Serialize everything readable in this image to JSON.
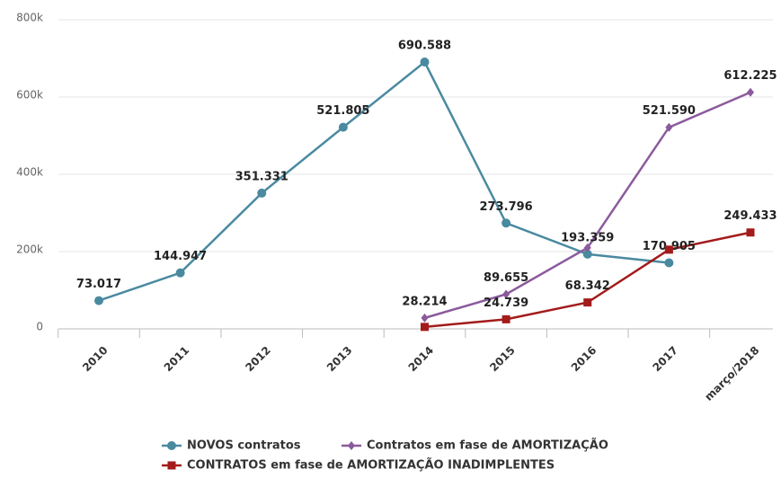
{
  "chart_data": {
    "type": "line",
    "categories": [
      "2010",
      "2011",
      "2012",
      "2013",
      "2014",
      "2015",
      "2016",
      "2017",
      "março/2018"
    ],
    "series": [
      {
        "name": "NOVOS contratos",
        "color": "#4a8aa0",
        "marker": "circle",
        "values": [
          73017,
          144947,
          351331,
          521805,
          690588,
          273796,
          193359,
          170905,
          null
        ],
        "value_labels": [
          "73.017",
          "144.947",
          "351.331",
          "521.805",
          "690.588",
          "273.796",
          "193.359",
          "170.905",
          null
        ]
      },
      {
        "name": "Contratos em fase de AMORTIZAÇÃO",
        "color": "#8b5a9c",
        "marker": "diamond",
        "values": [
          null,
          null,
          null,
          null,
          28214,
          89655,
          210000,
          521590,
          612225
        ],
        "value_labels": [
          null,
          null,
          null,
          null,
          "28.214",
          "89.655",
          null,
          "521.590",
          "612.225"
        ]
      },
      {
        "name": "CONTRATOS em fase de AMORTIZAÇÃO INADIMPLENTES",
        "color": "#a31b1b",
        "marker": "square",
        "values": [
          null,
          null,
          null,
          null,
          5000,
          24739,
          68342,
          205000,
          249433
        ],
        "value_labels": [
          null,
          null,
          null,
          null,
          null,
          "24.739",
          "68.342",
          null,
          "249.433"
        ]
      }
    ],
    "ylim": [
      0,
      800000
    ],
    "yticks": [
      0,
      {
        "value": 200000,
        "label": "200k"
      },
      {
        "value": 400000,
        "label": "400k"
      },
      {
        "value": 600000,
        "label": "600k"
      },
      {
        "value": 800000,
        "label": "800k"
      }
    ],
    "grid": true
  }
}
